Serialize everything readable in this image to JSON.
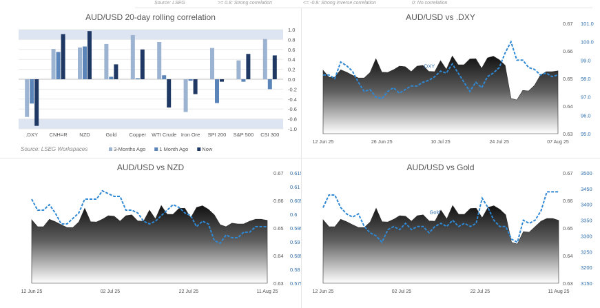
{
  "header": {
    "source_text": "Source: LSEG",
    "legend1": ">= 0.8: Strong correlation",
    "legend2": "<= -0.8: Strong inverse correlation",
    "legend3": "0: No correlation"
  },
  "colors": {
    "bar_3m": "#9db3d2",
    "bar_1m": "#5b84b8",
    "bar_now": "#1f3864",
    "band": "#dde4f2",
    "dashed": "#2f88d4",
    "right_axis": "#2f6fad"
  },
  "chart_data": [
    {
      "type": "bar",
      "title": "AUD/USD 20-day rolling correlation",
      "source": "Source: LSEG Workspaces",
      "categories": [
        ".DXY",
        "CNH=R",
        "NZD",
        "Gold",
        "Copper",
        "WTI Crude",
        "Iron Ore",
        "SPI 200",
        "S&P 500",
        "CSI 300"
      ],
      "series": [
        {
          "name": "3-Months Ago",
          "values": [
            -0.76,
            0.61,
            0.64,
            0.71,
            0.89,
            0.75,
            -0.66,
            0.63,
            0.38,
            0.81
          ]
        },
        {
          "name": "1 Month Ago",
          "values": [
            -0.49,
            0.55,
            0.66,
            0.05,
            0.02,
            0.08,
            -0.03,
            -0.48,
            -0.05,
            -0.2
          ]
        },
        {
          "name": "Now",
          "values": [
            -0.94,
            0.91,
            0.97,
            0.3,
            0.6,
            -0.57,
            -0.3,
            -0.05,
            0.51,
            0.48
          ]
        }
      ],
      "ylim": [
        -1.0,
        1.0
      ],
      "yticks": [
        "1.0",
        "0.8",
        "0.6",
        "0.4",
        "0.2",
        "0.0",
        "-0.2",
        "-0.4",
        "-0.6",
        "-0.8",
        "-1.0"
      ],
      "bands": [
        [
          0.8,
          1.0
        ],
        [
          -1.0,
          -0.8
        ]
      ],
      "legend_position": "bottom"
    },
    {
      "type": "area",
      "title": "AUD/USD vs .DXY",
      "series_label": ".DXY",
      "xticks": [
        "12 Jun 25",
        "26 Jun 25",
        "10 Jul 25",
        "24 Jul 25",
        "07 Aug 25"
      ],
      "left_axis": {
        "ticks": [
          "0.67",
          "0.66",
          "0.65",
          "0.64",
          "0.63"
        ],
        "min": 0.63,
        "max": 0.67
      },
      "right_axis": {
        "ticks": [
          "101.0",
          "100.0",
          "99.0",
          "98.0",
          "97.0",
          "96.0",
          "95.0"
        ],
        "min": 95.0,
        "max": 101.0
      },
      "aud": [
        0.653,
        0.6505,
        0.6505,
        0.6532,
        0.6523,
        0.6512,
        0.6502,
        0.6502,
        0.6522,
        0.6572,
        0.6523,
        0.6522,
        0.6532,
        0.6545,
        0.6543,
        0.6525,
        0.6545,
        0.6548,
        0.6526,
        0.6525,
        0.6565,
        0.6533,
        0.6582,
        0.655,
        0.655,
        0.6571,
        0.6572,
        0.6537,
        0.6575,
        0.6581,
        0.6568,
        0.6548,
        0.6428,
        0.6422,
        0.6457,
        0.6455,
        0.6475,
        0.6512,
        0.6525,
        0.6525,
        0.6528
      ],
      "other": [
        98.2,
        98.2,
        98.0,
        98.9,
        98.7,
        98.4,
        97.8,
        97.3,
        97.4,
        97.0,
        96.9,
        97.3,
        97.5,
        97.2,
        97.4,
        97.6,
        97.6,
        97.8,
        97.9,
        98.1,
        98.4,
        98.3,
        98.8,
        98.3,
        97.8,
        97.3,
        97.8,
        97.5,
        98.1,
        98.3,
        98.6,
        99.4,
        100.0,
        99.0,
        99.0,
        98.6,
        98.5,
        98.2,
        98.3,
        98.1,
        98.2
      ]
    },
    {
      "type": "area",
      "title": "AUD/USD vs NZD",
      "series_label": "",
      "xticks": [
        "12 Jun 25",
        "02 Jul 25",
        "22 Jul 25",
        "11 Aug 25"
      ],
      "left_axis": {
        "ticks": [
          "0.67",
          "0.66",
          "0.65",
          "0.64",
          "0.63"
        ],
        "min": 0.63,
        "max": 0.67
      },
      "right_axis": {
        "ticks": [
          "0.615",
          "0.61",
          "0.605",
          "0.6",
          "0.595",
          "0.59",
          "0.585",
          "0.58",
          "0.575"
        ],
        "min": 0.575,
        "max": 0.615
      },
      "aud": [
        0.653,
        0.6505,
        0.6505,
        0.6532,
        0.6523,
        0.6512,
        0.6502,
        0.6502,
        0.6522,
        0.6572,
        0.6523,
        0.6522,
        0.6532,
        0.6545,
        0.6543,
        0.6525,
        0.6545,
        0.6548,
        0.6526,
        0.6525,
        0.6565,
        0.6533,
        0.6582,
        0.655,
        0.655,
        0.6571,
        0.6572,
        0.6537,
        0.6575,
        0.6581,
        0.6568,
        0.6548,
        0.6512,
        0.6505,
        0.6518,
        0.6515,
        0.6515,
        0.6525,
        0.6532,
        0.6532,
        0.6528
      ],
      "other": [
        0.6055,
        0.6015,
        0.6015,
        0.6035,
        0.6005,
        0.5965,
        0.5965,
        0.5985,
        0.6005,
        0.6055,
        0.6055,
        0.6055,
        0.6085,
        0.6075,
        0.6065,
        0.6065,
        0.6015,
        0.6015,
        0.6005,
        0.5975,
        0.5965,
        0.5975,
        0.5995,
        0.6015,
        0.6035,
        0.6025,
        0.6005,
        0.5995,
        0.5955,
        0.5975,
        0.5965,
        0.5905,
        0.5895,
        0.5925,
        0.5915,
        0.5915,
        0.5935,
        0.5935,
        0.5955,
        0.5955,
        0.5955
      ]
    },
    {
      "type": "area",
      "title": "AUD/USD vs Gold",
      "series_label": "Gold",
      "xticks": [
        "12 Jun 25",
        "02 Jul 25",
        "22 Jul 25",
        "11 Aug 25"
      ],
      "left_axis": {
        "ticks": [
          "0.67",
          "0.66",
          "0.65",
          "0.64",
          "0.63"
        ],
        "min": 0.63,
        "max": 0.67
      },
      "right_axis": {
        "ticks": [
          "3500",
          "3450",
          "3400",
          "3350",
          "3300",
          "3250",
          "3200",
          "3150"
        ],
        "min": 3150,
        "max": 3500
      },
      "aud": [
        0.653,
        0.6505,
        0.6505,
        0.6532,
        0.6523,
        0.6512,
        0.6502,
        0.6502,
        0.6522,
        0.6572,
        0.6523,
        0.6522,
        0.6532,
        0.6545,
        0.6543,
        0.6525,
        0.6545,
        0.6548,
        0.6526,
        0.6525,
        0.6565,
        0.6533,
        0.6582,
        0.655,
        0.655,
        0.6571,
        0.6572,
        0.6537,
        0.6575,
        0.6581,
        0.6568,
        0.6548,
        0.6448,
        0.6442,
        0.6487,
        0.6485,
        0.6505,
        0.6525,
        0.6535,
        0.6535,
        0.6528
      ],
      "other": [
        3390,
        3430,
        3430,
        3390,
        3370,
        3360,
        3370,
        3330,
        3310,
        3300,
        3280,
        3320,
        3330,
        3320,
        3340,
        3320,
        3330,
        3330,
        3310,
        3330,
        3340,
        3330,
        3350,
        3330,
        3340,
        3330,
        3340,
        3420,
        3390,
        3350,
        3330,
        3330,
        3290,
        3280,
        3350,
        3340,
        3350,
        3380,
        3440,
        3440,
        3440
      ]
    }
  ]
}
